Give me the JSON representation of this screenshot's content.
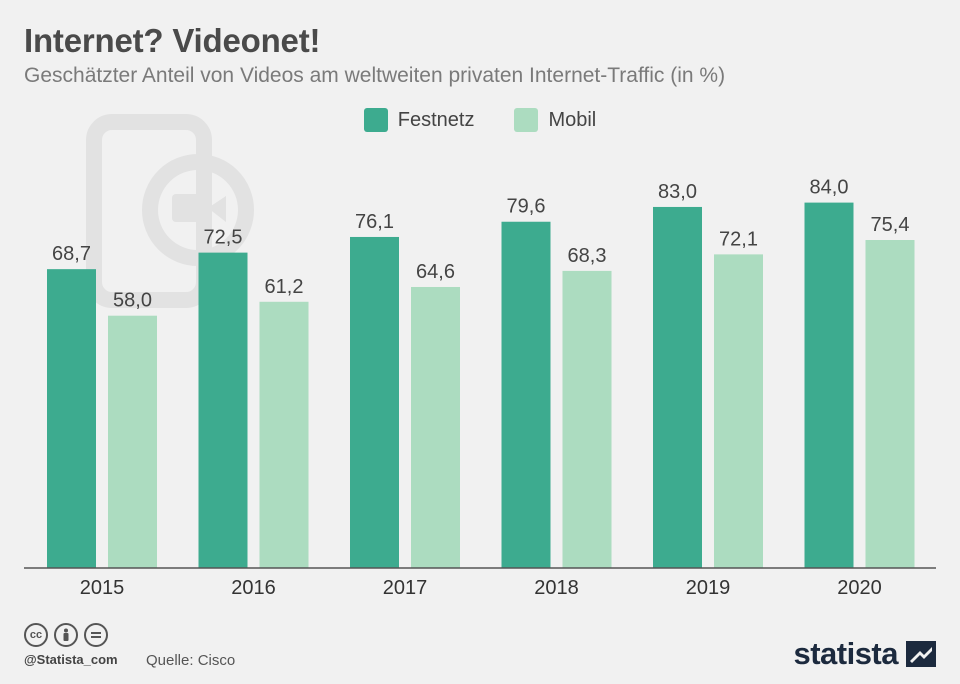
{
  "title": "Internet? Videonet!",
  "subtitle": "Geschätzter Anteil von Videos am weltweiten privaten Internet-Traffic (in %)",
  "colors": {
    "festnetz": "#3dab8f",
    "mobil": "#acdcc0"
  },
  "footer": {
    "handle": "@Statista_com",
    "source": "Quelle: Cisco",
    "logo_text": "statista"
  },
  "chart_data": {
    "type": "bar",
    "categories": [
      "2015",
      "2016",
      "2017",
      "2018",
      "2019",
      "2020"
    ],
    "series": [
      {
        "name": "Festnetz",
        "values": [
          68.7,
          72.5,
          76.1,
          79.6,
          83.0,
          84.0
        ],
        "labels": [
          "68,7",
          "72,5",
          "76,1",
          "79,6",
          "83,0",
          "84,0"
        ]
      },
      {
        "name": "Mobil",
        "values": [
          58.0,
          61.2,
          64.6,
          68.3,
          72.1,
          75.4
        ],
        "labels": [
          "58,0",
          "61,2",
          "64,6",
          "68,3",
          "72,1",
          "75,4"
        ]
      }
    ],
    "ylim": [
      0,
      100
    ],
    "grid": false,
    "legend": "top-center"
  }
}
